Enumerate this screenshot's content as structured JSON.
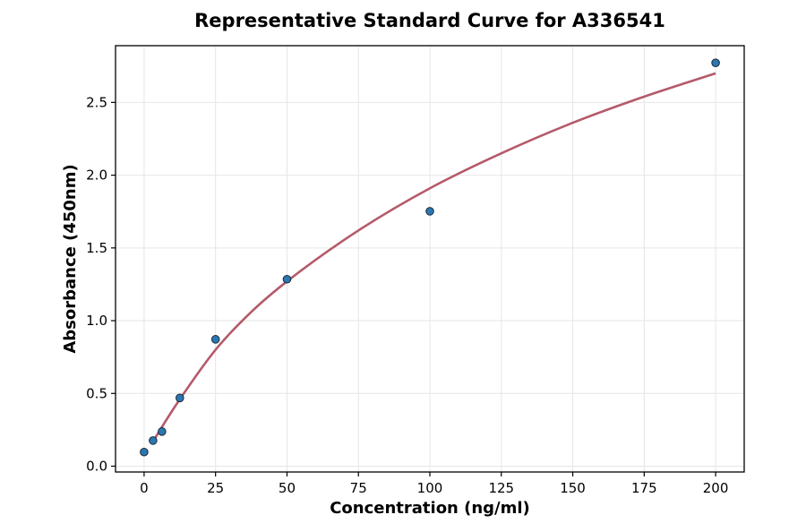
{
  "chart_data": {
    "type": "scatter",
    "title": "Representative Standard Curve for A336541",
    "xlabel": "Concentration (ng/ml)",
    "ylabel": "Absorbance (450nm)",
    "xlim": [
      -10,
      210
    ],
    "ylim": [
      -0.04,
      2.89
    ],
    "x_ticks": [
      0,
      25,
      50,
      75,
      100,
      125,
      150,
      175,
      200
    ],
    "y_ticks": [
      0.0,
      0.5,
      1.0,
      1.5,
      2.0,
      2.5
    ],
    "x_tick_labels": [
      "0",
      "25",
      "50",
      "75",
      "100",
      "125",
      "150",
      "175",
      "200"
    ],
    "y_tick_labels": [
      "0.0",
      "0.5",
      "1.0",
      "1.5",
      "2.0",
      "2.5"
    ],
    "grid": true,
    "points": {
      "x": [
        0,
        3.125,
        6.25,
        12.5,
        25,
        50,
        100,
        200
      ],
      "y": [
        0.097,
        0.176,
        0.238,
        0.469,
        0.872,
        1.285,
        1.752,
        2.772
      ]
    },
    "fit_curve": {
      "x": [
        3.125,
        6.25,
        12.5,
        25,
        37.5,
        50,
        75,
        100,
        125,
        150,
        175,
        200
      ],
      "y": [
        0.17,
        0.27,
        0.46,
        0.8,
        1.06,
        1.27,
        1.62,
        1.91,
        2.15,
        2.36,
        2.54,
        2.7
      ]
    },
    "colors": {
      "curve": "#b55a6a",
      "points": "#2a77b0"
    }
  }
}
